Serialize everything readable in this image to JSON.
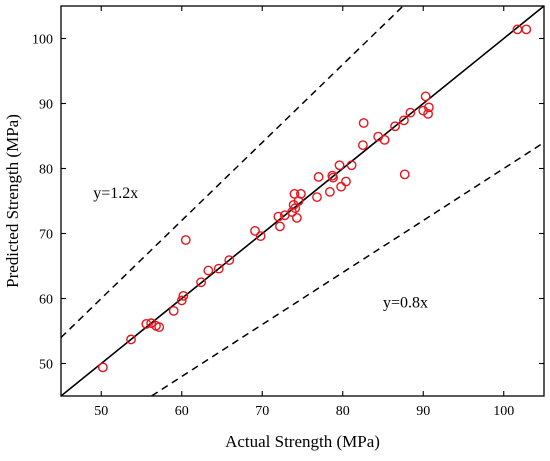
{
  "chart_data": {
    "type": "scatter",
    "title": "",
    "xlabel": "Actual Strength (MPa)",
    "ylabel": "Predicted Strength (MPa)",
    "xlim": [
      45,
      105
    ],
    "ylim": [
      45,
      105
    ],
    "xticks": [
      50,
      60,
      70,
      80,
      90,
      100
    ],
    "yticks": [
      50,
      60,
      70,
      80,
      90,
      100
    ],
    "grid": false,
    "marker_color": "#e8141c",
    "reference_lines": [
      {
        "slope": 1.0,
        "style": "solid"
      },
      {
        "slope": 1.2,
        "style": "dashed",
        "label": "y=1.2x",
        "label_at": [
          49,
          75.5
        ]
      },
      {
        "slope": 0.8,
        "style": "dashed",
        "label": "y=0.8x",
        "label_at": [
          85,
          58.6
        ]
      }
    ],
    "points": [
      [
        50.2,
        49.4
      ],
      [
        53.7,
        53.7
      ],
      [
        55.6,
        56.1
      ],
      [
        56.2,
        56.2
      ],
      [
        56.8,
        55.8
      ],
      [
        57.2,
        55.6
      ],
      [
        59.0,
        58.1
      ],
      [
        60.0,
        59.7
      ],
      [
        60.2,
        60.4
      ],
      [
        60.5,
        69.0
      ],
      [
        62.4,
        62.5
      ],
      [
        63.3,
        64.3
      ],
      [
        64.6,
        64.6
      ],
      [
        65.9,
        65.9
      ],
      [
        69.1,
        70.4
      ],
      [
        69.8,
        69.6
      ],
      [
        72.0,
        72.6
      ],
      [
        72.2,
        71.1
      ],
      [
        72.8,
        72.8
      ],
      [
        73.7,
        73.3
      ],
      [
        73.9,
        74.4
      ],
      [
        74.1,
        73.9
      ],
      [
        74.0,
        76.1
      ],
      [
        74.3,
        72.4
      ],
      [
        74.5,
        75.0
      ],
      [
        74.8,
        76.1
      ],
      [
        76.8,
        75.6
      ],
      [
        77.0,
        78.7
      ],
      [
        78.4,
        76.4
      ],
      [
        78.7,
        78.9
      ],
      [
        78.8,
        78.6
      ],
      [
        79.6,
        80.5
      ],
      [
        79.8,
        77.2
      ],
      [
        80.4,
        78.0
      ],
      [
        81.1,
        80.5
      ],
      [
        82.5,
        83.6
      ],
      [
        82.6,
        87.0
      ],
      [
        84.4,
        84.9
      ],
      [
        85.2,
        84.4
      ],
      [
        86.5,
        86.5
      ],
      [
        87.6,
        87.4
      ],
      [
        87.7,
        79.1
      ],
      [
        88.4,
        88.6
      ],
      [
        90.0,
        88.9
      ],
      [
        90.3,
        91.1
      ],
      [
        90.7,
        89.4
      ],
      [
        90.6,
        88.4
      ],
      [
        101.7,
        101.4
      ],
      [
        102.8,
        101.4
      ]
    ]
  }
}
